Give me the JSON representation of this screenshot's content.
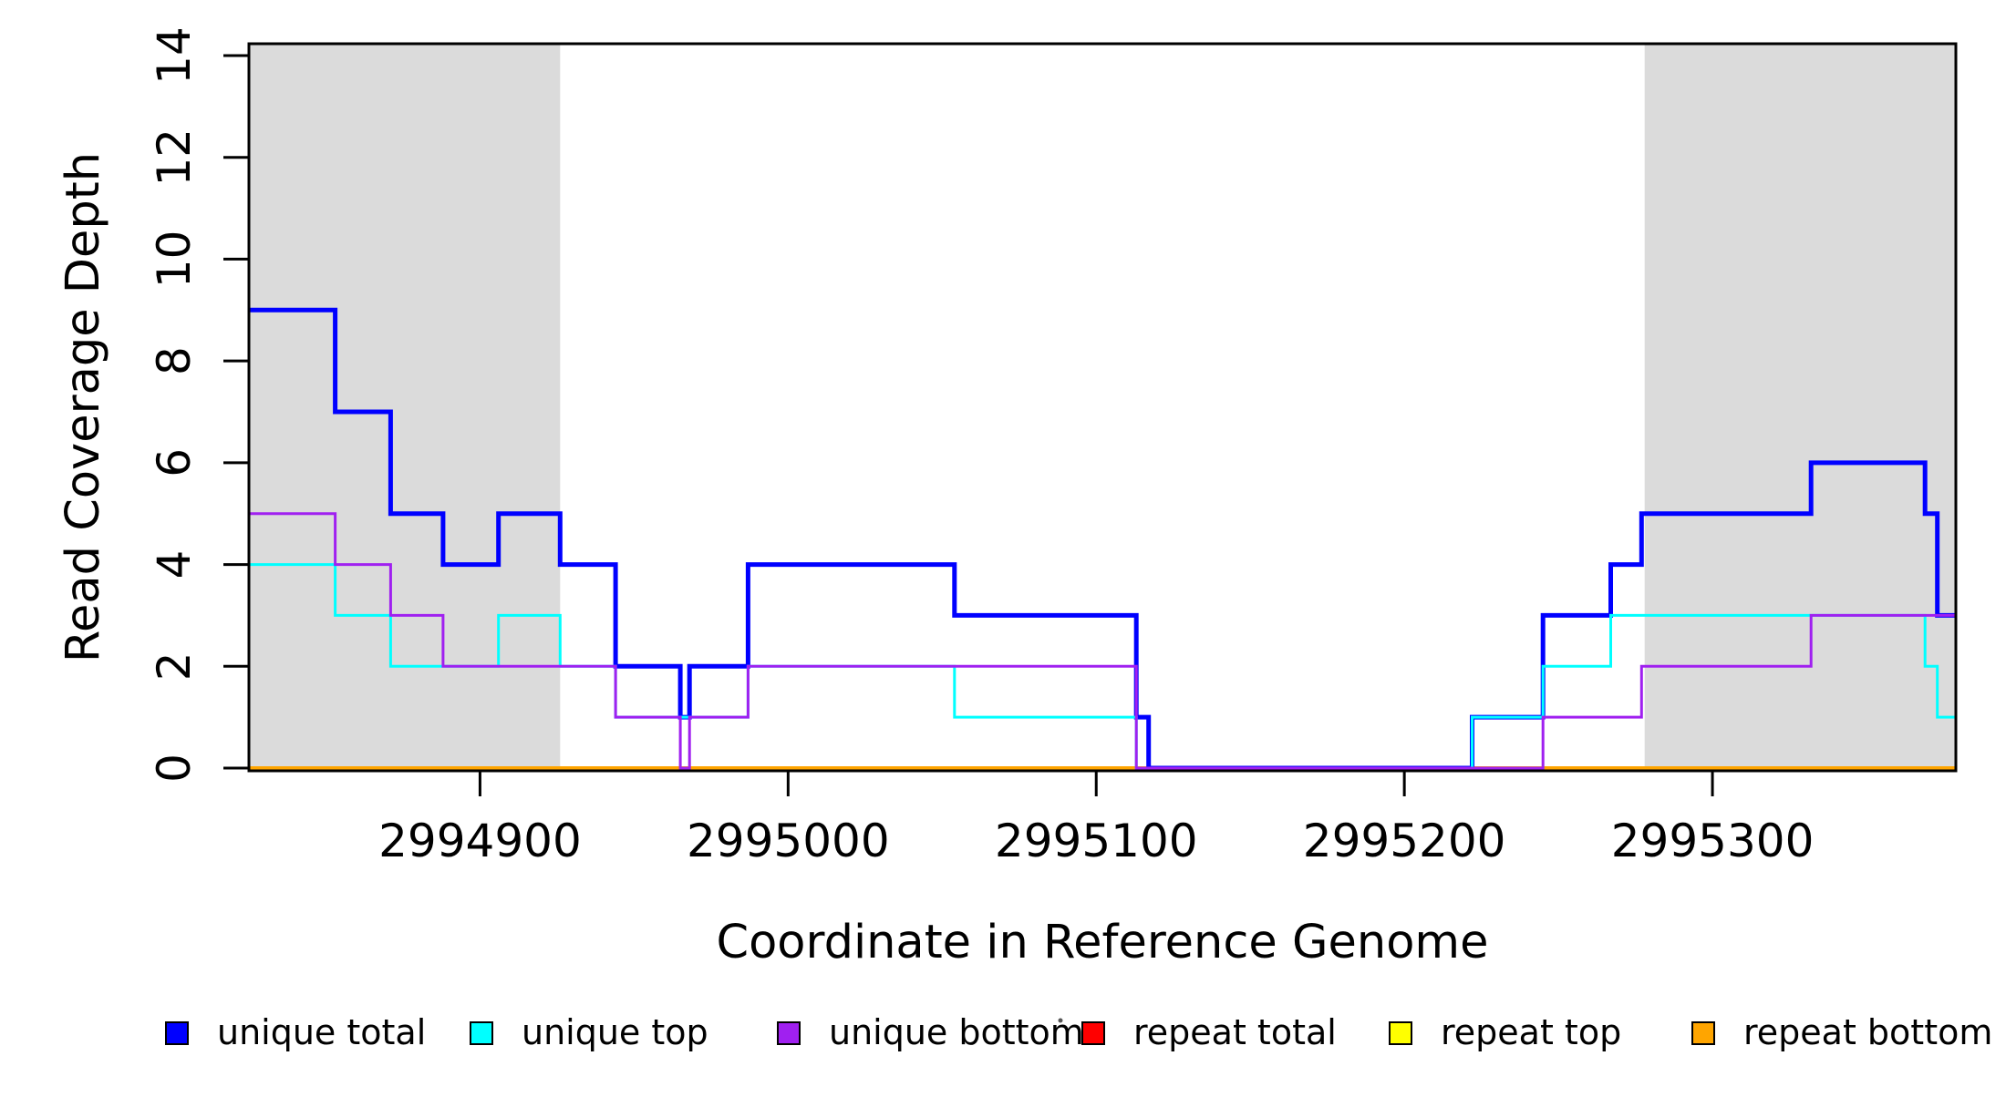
{
  "figure": {
    "background": "#ffffff",
    "plot_background": "#ffffff"
  },
  "chart_data": {
    "type": "line",
    "subtype": "step",
    "title": "",
    "xlabel": "Coordinate in Reference Genome",
    "ylabel": "Read Coverage Depth",
    "xlim": [
      2994825,
      2995379
    ],
    "ylim": [
      0,
      14
    ],
    "x_ticks": [
      2994900,
      2995000,
      2995100,
      2995200,
      2995300
    ],
    "y_ticks": [
      0,
      2,
      4,
      6,
      8,
      10,
      12,
      14
    ],
    "grid": false,
    "legend_position": "bottom-horizontal",
    "shaded_regions": [
      {
        "x0": 2994825,
        "x1": 2994926,
        "color": "#DBDBDB"
      },
      {
        "x0": 2995278,
        "x1": 2995379,
        "color": "#DBDBDB"
      }
    ],
    "series": [
      {
        "name": "repeat total",
        "color": "#FF0000",
        "lwd": 4,
        "points": [
          [
            2994825,
            0
          ]
        ]
      },
      {
        "name": "repeat top",
        "color": "#FFFF00",
        "lwd": 4,
        "points": [
          [
            2994825,
            0
          ]
        ]
      },
      {
        "name": "repeat bottom",
        "color": "#FFA500",
        "lwd": 4,
        "points": [
          [
            2994825,
            0
          ]
        ]
      },
      {
        "name": "unique total",
        "color": "#0000FF",
        "lwd": 5,
        "points": [
          [
            2994825,
            9
          ],
          [
            2994853,
            7
          ],
          [
            2994871,
            5
          ],
          [
            2994888,
            4
          ],
          [
            2994906,
            5
          ],
          [
            2994926,
            4
          ],
          [
            2994944,
            2
          ],
          [
            2994965,
            1
          ],
          [
            2994968,
            2
          ],
          [
            2994987,
            4
          ],
          [
            2995054,
            3
          ],
          [
            2995113,
            1
          ],
          [
            2995117,
            0
          ],
          [
            2995222,
            1
          ],
          [
            2995245,
            3
          ],
          [
            2995267,
            4
          ],
          [
            2995277,
            5
          ],
          [
            2995332,
            6
          ],
          [
            2995369,
            5
          ],
          [
            2995373,
            3
          ]
        ]
      },
      {
        "name": "unique top",
        "color": "#00FFFF",
        "lwd": 3,
        "points": [
          [
            2994825,
            4
          ],
          [
            2994853,
            3
          ],
          [
            2994871,
            2
          ],
          [
            2994906,
            3
          ],
          [
            2994926,
            2
          ],
          [
            2994944,
            1
          ],
          [
            2994987,
            2
          ],
          [
            2995054,
            1
          ],
          [
            2995113,
            0
          ],
          [
            2995222,
            1
          ],
          [
            2995245,
            2
          ],
          [
            2995267,
            3
          ],
          [
            2995369,
            2
          ],
          [
            2995373,
            1
          ]
        ]
      },
      {
        "name": "unique bottom",
        "color": "#A020F0",
        "lwd": 3,
        "points": [
          [
            2994825,
            5
          ],
          [
            2994853,
            4
          ],
          [
            2994871,
            3
          ],
          [
            2994888,
            2
          ],
          [
            2994944,
            1
          ],
          [
            2994965,
            0
          ],
          [
            2994968,
            1
          ],
          [
            2994987,
            2
          ],
          [
            2995113,
            0
          ],
          [
            2995245,
            1
          ],
          [
            2995277,
            2
          ],
          [
            2995332,
            3
          ]
        ]
      }
    ],
    "legend": [
      {
        "label": "unique total",
        "color": "#0000FF"
      },
      {
        "label": "unique top",
        "color": "#00FFFF"
      },
      {
        "label": "unique bottom",
        "color": "#A020F0"
      },
      {
        "label": "repeat total",
        "color": "#FF0000"
      },
      {
        "label": "repeat top",
        "color": "#FFFF00"
      },
      {
        "label": "repeat bottom",
        "color": "#FFA500"
      }
    ]
  }
}
